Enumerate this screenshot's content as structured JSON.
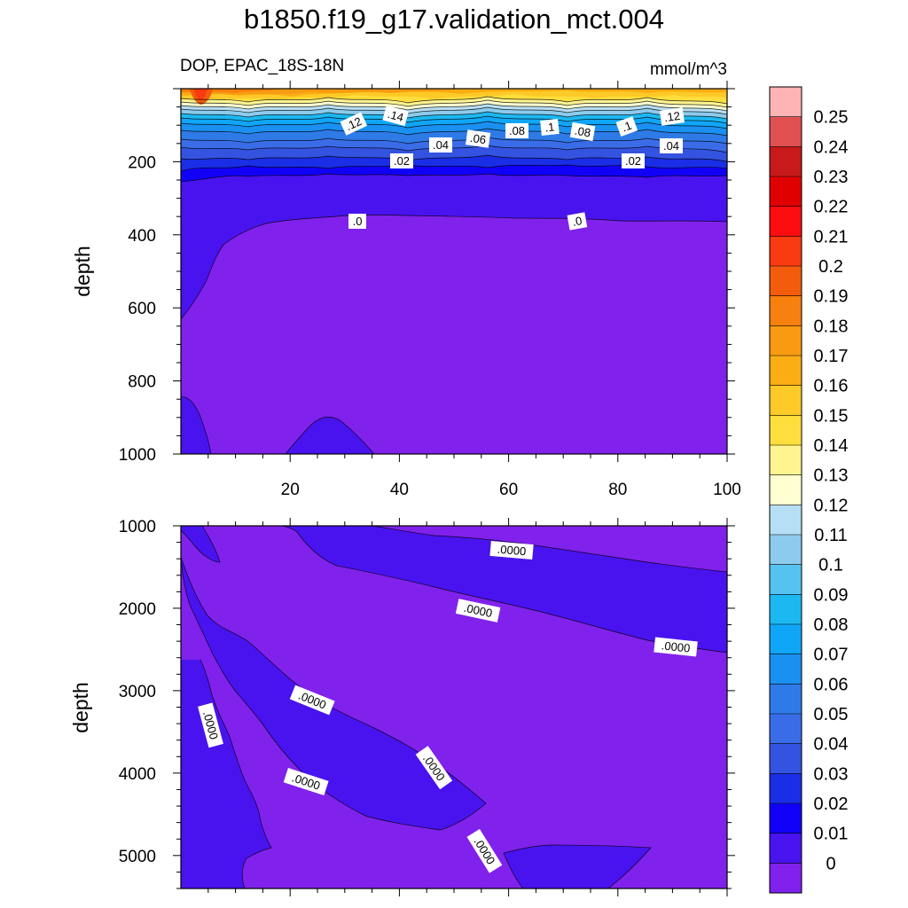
{
  "title": "b1850.f19_g17.validation_mct.004",
  "chart_data": {
    "type": "contour",
    "variable_label": "DOP, EPAC_18S-18N",
    "units": "mmol/m^3",
    "colorbar": {
      "levels": [
        "0",
        "0.01",
        "0.02",
        "0.03",
        "0.04",
        "0.05",
        "0.06",
        "0.07",
        "0.08",
        "0.09",
        "0.1",
        "0.11",
        "0.12",
        "0.13",
        "0.14",
        "0.15",
        "0.16",
        "0.17",
        "0.18",
        "0.19",
        "0.2",
        "0.21",
        "0.22",
        "0.23",
        "0.24",
        "0.25"
      ],
      "colors": [
        "#8021ec",
        "#4913ef",
        "#1000f8",
        "#1a2ee6",
        "#3453e0",
        "#3b6ce8",
        "#2e7be8",
        "#1a90f0",
        "#10a6f8",
        "#1cb8f2",
        "#55c3f0",
        "#8ccbed",
        "#b6def4",
        "#fefed0",
        "#fef490",
        "#fede3c",
        "#fdca28",
        "#fbad14",
        "#f89b12",
        "#f7800e",
        "#f25c0c",
        "#fa3a10",
        "#fd0c10",
        "#e00000",
        "#c81a1a",
        "#e05050",
        "#feb4b4"
      ]
    },
    "x_ticks": [
      "20",
      "40",
      "60",
      "80",
      "100"
    ],
    "x_range": [
      0,
      100
    ],
    "panels": [
      {
        "name": "upper",
        "ylabel": "depth",
        "y_range": [
          0,
          1000
        ],
        "y_ticks": [
          "200",
          "400",
          "600",
          "800",
          "1000"
        ],
        "contour_labels": [
          ".12",
          ".14",
          ".04",
          ".06",
          ".08",
          ".1",
          ".08",
          ".1",
          ".12",
          ".04",
          ".02",
          ".02",
          ".0",
          ".0"
        ]
      },
      {
        "name": "lower",
        "ylabel": "depth",
        "y_range": [
          1000,
          5400
        ],
        "y_ticks": [
          "1000",
          "2000",
          "3000",
          "4000",
          "5000"
        ],
        "contour_labels": [
          ".0000",
          ".0000",
          ".0000",
          ".0000",
          ".0000",
          ".0000",
          ".0000",
          ".0000"
        ]
      }
    ]
  }
}
